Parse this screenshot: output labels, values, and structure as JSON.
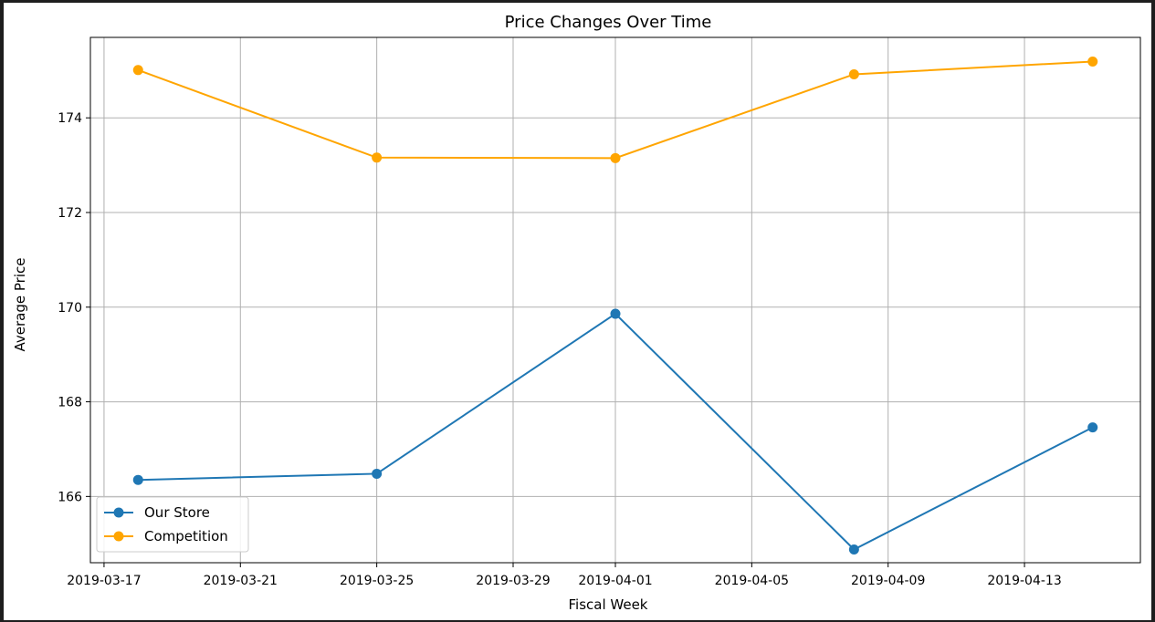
{
  "chart_data": {
    "type": "line",
    "title": "Price Changes Over Time",
    "xlabel": "Fiscal Week",
    "ylabel": "Average Price",
    "x": [
      "2019-03-18",
      "2019-03-25",
      "2019-04-01",
      "2019-04-08",
      "2019-04-15"
    ],
    "xlim": [
      "2019-03-16.6",
      "2019-04-16.4"
    ],
    "xticks": [
      "2019-03-17",
      "2019-03-21",
      "2019-03-25",
      "2019-03-29",
      "2019-04-01",
      "2019-04-05",
      "2019-04-09",
      "2019-04-13"
    ],
    "ylim": [
      164.6,
      175.7
    ],
    "yticks": [
      166,
      168,
      170,
      172,
      174
    ],
    "grid": true,
    "legend_position": "lower-left",
    "series": [
      {
        "name": "Our Store",
        "color": "#1f77b4",
        "marker": "circle",
        "values": [
          166.35,
          166.48,
          169.86,
          164.88,
          167.46
        ]
      },
      {
        "name": "Competition",
        "color": "#ffa500",
        "marker": "circle",
        "values": [
          175.01,
          173.16,
          173.15,
          174.92,
          175.19
        ]
      }
    ]
  }
}
